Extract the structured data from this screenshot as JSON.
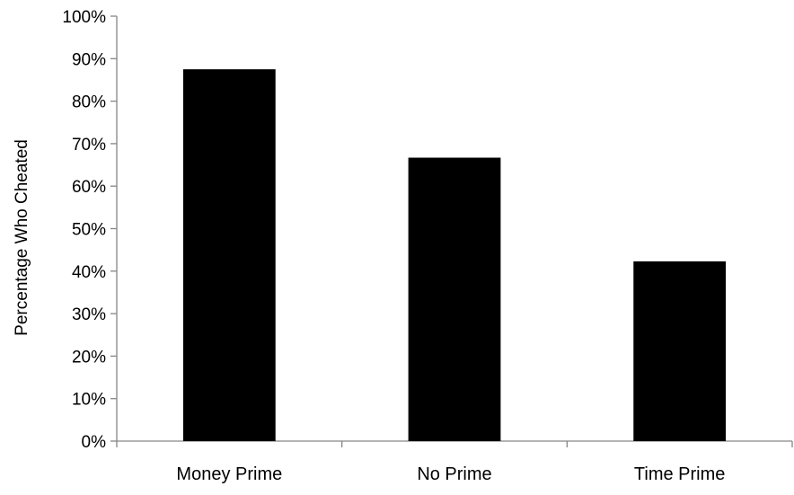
{
  "chart_data": {
    "type": "bar",
    "categories": [
      "Money Prime",
      "No Prime",
      "Time Prime"
    ],
    "values": [
      87.5,
      66.7,
      42.3
    ],
    "title": "",
    "xlabel": "",
    "ylabel": "Percentage Who Cheated",
    "ylim": [
      0,
      100
    ],
    "yticks": [
      0,
      10,
      20,
      30,
      40,
      50,
      60,
      70,
      80,
      90,
      100
    ],
    "ytick_labels": [
      "0%",
      "10%",
      "20%",
      "30%",
      "40%",
      "50%",
      "60%",
      "70%",
      "80%",
      "90%",
      "100%"
    ],
    "bar_color": "#000000",
    "axis_color": "#868686",
    "grid": false,
    "legend": "none"
  }
}
